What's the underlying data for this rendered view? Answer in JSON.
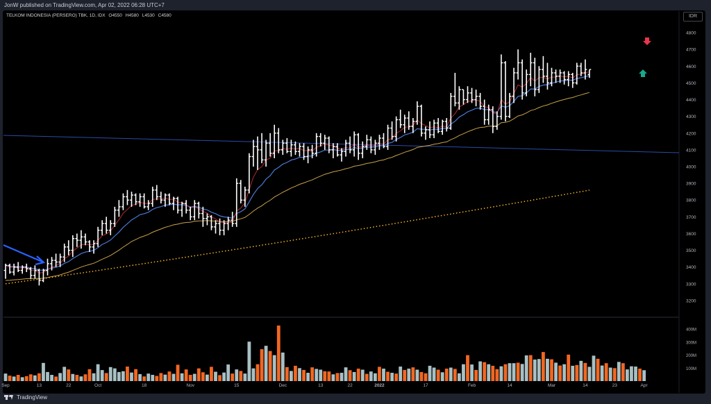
{
  "header": {
    "published": "JonW published on TradingView.com, Apr 02, 2022 06:28 UTC+7"
  },
  "legend": {
    "symbol": "TELKOM INDONESIA (PERSERO) TBK, 1D, IDX",
    "open_label": "O",
    "open": "4550",
    "high_label": "H",
    "high": "4580",
    "low_label": "L",
    "low": "4530",
    "close_label": "C",
    "close": "4580"
  },
  "currency": "IDR",
  "footer": {
    "brand": "TradingView"
  },
  "colors": {
    "bar": "#ffffff",
    "ma_fast": "#b2282d",
    "ma_mid": "#4a78d6",
    "ma_slow": "#c9a24b",
    "ma_long_dotted": "#f5b323",
    "trendline": "#2b4ba8",
    "arrow": "#2962ff",
    "vol_up": "#a8c0c4",
    "vol_down": "#f26722",
    "signal_down": "#e8364b",
    "signal_up": "#19a88b",
    "axis_text": "#b2b5be"
  },
  "chart_data": {
    "type": "bar",
    "title": "TELKOM INDONESIA (PERSERO) TBK, 1D, IDX",
    "ylim": [
      3150,
      4850
    ],
    "yticks": [
      3200,
      3300,
      3400,
      3500,
      3600,
      3700,
      3800,
      3900,
      4000,
      4100,
      4200,
      4300,
      4400,
      4500,
      4600,
      4700,
      4800
    ],
    "volume_ticks": [
      "100M",
      "200M",
      "300M",
      "400M"
    ],
    "volume_tick_values": [
      100,
      200,
      300,
      400
    ],
    "volume_ylim": [
      0,
      460
    ],
    "xticks": [
      {
        "label": "Sep",
        "i": 0
      },
      {
        "label": "13",
        "i": 8
      },
      {
        "label": "22",
        "i": 15
      },
      {
        "label": "Oct",
        "i": 22
      },
      {
        "label": "18",
        "i": 33
      },
      {
        "label": "Nov",
        "i": 44
      },
      {
        "label": "15",
        "i": 55
      },
      {
        "label": "Dec",
        "i": 66
      },
      {
        "label": "13",
        "i": 75
      },
      {
        "label": "22",
        "i": 82
      },
      {
        "label": "2022",
        "i": 89
      },
      {
        "label": "17",
        "i": 100
      },
      {
        "label": "Feb",
        "i": 111
      },
      {
        "label": "14",
        "i": 120
      },
      {
        "label": "Mar",
        "i": 130
      },
      {
        "label": "14",
        "i": 138
      },
      {
        "label": "23",
        "i": 145
      },
      {
        "label": "Apr",
        "i": 152
      }
    ],
    "ohlc": [
      [
        3380,
        3420,
        3330,
        3410
      ],
      [
        3410,
        3420,
        3360,
        3370
      ],
      [
        3370,
        3420,
        3350,
        3400
      ],
      [
        3400,
        3430,
        3370,
        3380
      ],
      [
        3380,
        3410,
        3360,
        3400
      ],
      [
        3400,
        3420,
        3370,
        3390
      ],
      [
        3390,
        3400,
        3330,
        3350
      ],
      [
        3350,
        3410,
        3330,
        3380
      ],
      [
        3380,
        3390,
        3290,
        3320
      ],
      [
        3320,
        3390,
        3310,
        3380
      ],
      [
        3380,
        3450,
        3350,
        3420
      ],
      [
        3420,
        3460,
        3380,
        3440
      ],
      [
        3440,
        3480,
        3400,
        3430
      ],
      [
        3430,
        3480,
        3400,
        3460
      ],
      [
        3460,
        3540,
        3430,
        3520
      ],
      [
        3520,
        3560,
        3470,
        3500
      ],
      [
        3500,
        3590,
        3460,
        3570
      ],
      [
        3570,
        3600,
        3520,
        3560
      ],
      [
        3560,
        3620,
        3510,
        3580
      ],
      [
        3580,
        3600,
        3530,
        3550
      ],
      [
        3550,
        3560,
        3490,
        3520
      ],
      [
        3520,
        3560,
        3480,
        3540
      ],
      [
        3540,
        3640,
        3520,
        3620
      ],
      [
        3620,
        3680,
        3590,
        3660
      ],
      [
        3660,
        3700,
        3600,
        3620
      ],
      [
        3620,
        3680,
        3590,
        3660
      ],
      [
        3660,
        3760,
        3640,
        3740
      ],
      [
        3740,
        3800,
        3700,
        3760
      ],
      [
        3760,
        3840,
        3740,
        3820
      ],
      [
        3820,
        3860,
        3770,
        3800
      ],
      [
        3800,
        3850,
        3760,
        3830
      ],
      [
        3830,
        3840,
        3770,
        3790
      ],
      [
        3790,
        3840,
        3760,
        3820
      ],
      [
        3820,
        3840,
        3750,
        3760
      ],
      [
        3760,
        3800,
        3740,
        3780
      ],
      [
        3780,
        3880,
        3760,
        3860
      ],
      [
        3860,
        3890,
        3800,
        3820
      ],
      [
        3820,
        3850,
        3780,
        3800
      ],
      [
        3800,
        3840,
        3760,
        3830
      ],
      [
        3830,
        3840,
        3770,
        3780
      ],
      [
        3780,
        3820,
        3740,
        3810
      ],
      [
        3810,
        3820,
        3720,
        3740
      ],
      [
        3740,
        3790,
        3700,
        3780
      ],
      [
        3780,
        3800,
        3720,
        3740
      ],
      [
        3740,
        3760,
        3680,
        3700
      ],
      [
        3700,
        3800,
        3680,
        3780
      ],
      [
        3780,
        3790,
        3690,
        3720
      ],
      [
        3720,
        3760,
        3640,
        3690
      ],
      [
        3690,
        3720,
        3650,
        3700
      ],
      [
        3700,
        3710,
        3620,
        3640
      ],
      [
        3640,
        3680,
        3600,
        3660
      ],
      [
        3660,
        3690,
        3590,
        3620
      ],
      [
        3620,
        3680,
        3590,
        3660
      ],
      [
        3660,
        3700,
        3620,
        3680
      ],
      [
        3680,
        3730,
        3640,
        3660
      ],
      [
        3660,
        3930,
        3640,
        3900
      ],
      [
        3900,
        3920,
        3780,
        3800
      ],
      [
        3800,
        3880,
        3760,
        3860
      ],
      [
        3860,
        4080,
        3840,
        4060
      ],
      [
        4060,
        4160,
        4000,
        4120
      ],
      [
        4120,
        4180,
        3980,
        4100
      ],
      [
        4100,
        4200,
        4020,
        4040
      ],
      [
        4040,
        4160,
        4000,
        4140
      ],
      [
        4140,
        4200,
        4060,
        4080
      ],
      [
        4080,
        4250,
        4050,
        4200
      ],
      [
        4200,
        4230,
        4080,
        4100
      ],
      [
        4100,
        4160,
        4070,
        4140
      ],
      [
        4140,
        4170,
        4080,
        4090
      ],
      [
        4090,
        4160,
        4060,
        4130
      ],
      [
        4130,
        4150,
        4070,
        4090
      ],
      [
        4090,
        4140,
        4060,
        4120
      ],
      [
        4120,
        4140,
        4040,
        4060
      ],
      [
        4060,
        4120,
        4020,
        4100
      ],
      [
        4100,
        4130,
        4050,
        4080
      ],
      [
        4080,
        4200,
        4060,
        4180
      ],
      [
        4180,
        4200,
        4120,
        4140
      ],
      [
        4140,
        4190,
        4100,
        4170
      ],
      [
        4170,
        4180,
        4080,
        4100
      ],
      [
        4100,
        4140,
        4050,
        4120
      ],
      [
        4120,
        4140,
        4060,
        4070
      ],
      [
        4070,
        4110,
        4030,
        4090
      ],
      [
        4090,
        4160,
        4060,
        4140
      ],
      [
        4140,
        4180,
        4080,
        4100
      ],
      [
        4100,
        4210,
        4060,
        4190
      ],
      [
        4190,
        4200,
        4040,
        4080
      ],
      [
        4080,
        4150,
        4050,
        4120
      ],
      [
        4120,
        4190,
        4100,
        4160
      ],
      [
        4160,
        4180,
        4080,
        4100
      ],
      [
        4100,
        4160,
        4070,
        4140
      ],
      [
        4140,
        4190,
        4100,
        4170
      ],
      [
        4170,
        4200,
        4110,
        4120
      ],
      [
        4120,
        4250,
        4100,
        4230
      ],
      [
        4230,
        4270,
        4160,
        4180
      ],
      [
        4180,
        4300,
        4150,
        4280
      ],
      [
        4280,
        4340,
        4230,
        4250
      ],
      [
        4250,
        4310,
        4200,
        4290
      ],
      [
        4290,
        4330,
        4220,
        4240
      ],
      [
        4240,
        4290,
        4200,
        4270
      ],
      [
        4270,
        4390,
        4250,
        4360
      ],
      [
        4360,
        4370,
        4180,
        4200
      ],
      [
        4200,
        4240,
        4160,
        4220
      ],
      [
        4220,
        4270,
        4170,
        4190
      ],
      [
        4190,
        4280,
        4170,
        4260
      ],
      [
        4260,
        4290,
        4200,
        4210
      ],
      [
        4210,
        4280,
        4190,
        4270
      ],
      [
        4270,
        4290,
        4210,
        4230
      ],
      [
        4230,
        4440,
        4220,
        4420
      ],
      [
        4420,
        4560,
        4360,
        4380
      ],
      [
        4380,
        4480,
        4340,
        4460
      ],
      [
        4460,
        4460,
        4370,
        4400
      ],
      [
        4400,
        4480,
        4380,
        4440
      ],
      [
        4440,
        4470,
        4380,
        4400
      ],
      [
        4400,
        4460,
        4360,
        4420
      ],
      [
        4420,
        4440,
        4340,
        4360
      ],
      [
        4360,
        4400,
        4250,
        4280
      ],
      [
        4280,
        4370,
        4250,
        4340
      ],
      [
        4340,
        4360,
        4200,
        4240
      ],
      [
        4240,
        4330,
        4220,
        4300
      ],
      [
        4300,
        4670,
        4280,
        4620
      ],
      [
        4620,
        4630,
        4270,
        4300
      ],
      [
        4300,
        4440,
        4290,
        4420
      ],
      [
        4420,
        4590,
        4380,
        4560
      ],
      [
        4560,
        4700,
        4520,
        4620
      ],
      [
        4620,
        4640,
        4400,
        4440
      ],
      [
        4440,
        4580,
        4420,
        4550
      ],
      [
        4550,
        4680,
        4480,
        4620
      ],
      [
        4620,
        4650,
        4420,
        4460
      ],
      [
        4460,
        4600,
        4440,
        4580
      ],
      [
        4580,
        4660,
        4500,
        4540
      ],
      [
        4540,
        4620,
        4460,
        4500
      ],
      [
        4500,
        4590,
        4480,
        4560
      ],
      [
        4560,
        4580,
        4500,
        4540
      ],
      [
        4540,
        4580,
        4500,
        4560
      ],
      [
        4560,
        4570,
        4490,
        4520
      ],
      [
        4520,
        4570,
        4480,
        4550
      ],
      [
        4550,
        4560,
        4470,
        4500
      ],
      [
        4500,
        4620,
        4490,
        4600
      ],
      [
        4600,
        4620,
        4540,
        4560
      ],
      [
        4560,
        4640,
        4520,
        4580
      ],
      [
        4550,
        4580,
        4530,
        4580
      ]
    ],
    "volume_millions": [
      58,
      42,
      35,
      48,
      30,
      38,
      52,
      44,
      60,
      140,
      70,
      48,
      35,
      62,
      110,
      90,
      55,
      48,
      36,
      52,
      92,
      60,
      130,
      85,
      62,
      108,
      98,
      70,
      76,
      112,
      66,
      92,
      54,
      36,
      58,
      48,
      40,
      62,
      50,
      74,
      56,
      126,
      60,
      90,
      48,
      56,
      98,
      68,
      50,
      110,
      72,
      46,
      66,
      128,
      58,
      90,
      78,
      58,
      304,
      98,
      130,
      246,
      272,
      232,
      200,
      428,
      220,
      108,
      78,
      118,
      100,
      86,
      64,
      106,
      94,
      88,
      76,
      74,
      52,
      62,
      64,
      106,
      84,
      70,
      96,
      88,
      56,
      74,
      60,
      110,
      96,
      72,
      64,
      58,
      112,
      86,
      96,
      106,
      88,
      70,
      60,
      118,
      104,
      88,
      68,
      96,
      104,
      94,
      60,
      130,
      200,
      128,
      86,
      152,
      146,
      130,
      118,
      92,
      114,
      130,
      138,
      138,
      142,
      132,
      198,
      200,
      166,
      170,
      224,
      172,
      168,
      142,
      120,
      130,
      204,
      118,
      124,
      156,
      140,
      110,
      196,
      172,
      120,
      138,
      104,
      100,
      148,
      138,
      90,
      114,
      112,
      96,
      84
    ],
    "volume_up": [
      true,
      false,
      true,
      false,
      true,
      false,
      false,
      true,
      false,
      true,
      true,
      true,
      false,
      true,
      true,
      false,
      true,
      false,
      true,
      false,
      false,
      true,
      true,
      true,
      false,
      true,
      true,
      true,
      true,
      false,
      true,
      false,
      true,
      false,
      true,
      true,
      false,
      false,
      true,
      false,
      true,
      false,
      true,
      false,
      false,
      true,
      false,
      false,
      true,
      false,
      true,
      false,
      true,
      true,
      false,
      true,
      false,
      true,
      true,
      true,
      false,
      false,
      true,
      false,
      true,
      false,
      true,
      false,
      true,
      false,
      true,
      false,
      true,
      false,
      true,
      true,
      false,
      false,
      true,
      false,
      true,
      true,
      false,
      true,
      false,
      true,
      false,
      true,
      true,
      false,
      true,
      false,
      true,
      false,
      true,
      false,
      true,
      false,
      true,
      false,
      false,
      true,
      true,
      false,
      true,
      false,
      true,
      false,
      true,
      true,
      false,
      true,
      false,
      true,
      false,
      true,
      false,
      false,
      true,
      false,
      true,
      true,
      false,
      true,
      true,
      false,
      true,
      true,
      false,
      true,
      false,
      true,
      false,
      true,
      false,
      true,
      false,
      true,
      false,
      true,
      true,
      false,
      true,
      false,
      true,
      false,
      true,
      false,
      true,
      true,
      true,
      false,
      true
    ]
  }
}
